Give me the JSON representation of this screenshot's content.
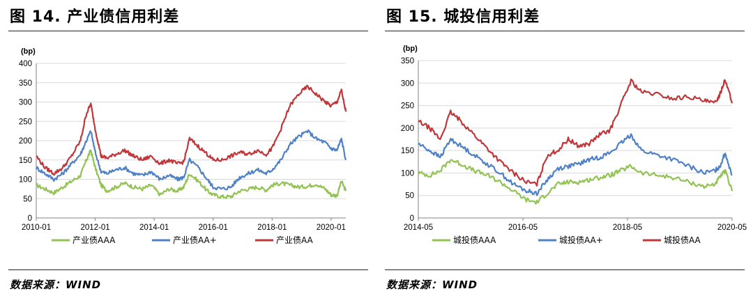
{
  "panels": [
    {
      "title": "图 14. 产业债信用利差",
      "source": "数据来源：WIND"
    },
    {
      "title": "图 15.  城投信用利差",
      "source": "数据来源：WIND"
    }
  ],
  "chart_data": [
    {
      "type": "line",
      "title": "图 14. 产业债信用利差",
      "ylabel": "(bp)",
      "ylim": [
        0,
        400
      ],
      "yticks": [
        0,
        50,
        100,
        150,
        200,
        250,
        300,
        350,
        400
      ],
      "xlim": [
        2010.0,
        2020.5
      ],
      "xticks": [
        {
          "label": "2010-01",
          "value": 2010.0
        },
        {
          "label": "2012-01",
          "value": 2012.0
        },
        {
          "label": "2014-01",
          "value": 2014.0
        },
        {
          "label": "2016-01",
          "value": 2016.0
        },
        {
          "label": "2018-01",
          "value": 2018.0
        },
        {
          "label": "2020-01",
          "value": 2020.0
        }
      ],
      "grid": "horizontal",
      "legend": "bottom",
      "series": [
        {
          "name": "产业债AAA",
          "color": "#92c353",
          "x": [
            2010.0,
            2010.3,
            2010.6,
            2010.9,
            2011.2,
            2011.5,
            2011.7,
            2011.85,
            2012.0,
            2012.2,
            2012.4,
            2012.7,
            2013.0,
            2013.3,
            2013.6,
            2013.9,
            2014.2,
            2014.5,
            2014.8,
            2015.0,
            2015.2,
            2015.5,
            2015.8,
            2016.0,
            2016.3,
            2016.6,
            2016.9,
            2017.2,
            2017.5,
            2017.8,
            2018.0,
            2018.3,
            2018.6,
            2018.9,
            2019.2,
            2019.5,
            2019.8,
            2020.0,
            2020.2,
            2020.35,
            2020.5
          ],
          "y": [
            85,
            75,
            65,
            80,
            95,
            110,
            150,
            175,
            130,
            85,
            70,
            80,
            90,
            80,
            75,
            85,
            60,
            75,
            70,
            80,
            115,
            95,
            70,
            60,
            55,
            55,
            70,
            75,
            80,
            72,
            85,
            90,
            85,
            80,
            82,
            88,
            75,
            60,
            58,
            95,
            70
          ]
        },
        {
          "name": "产业债AA+",
          "color": "#4f81c6",
          "x": [
            2010.0,
            2010.3,
            2010.6,
            2010.9,
            2011.2,
            2011.5,
            2011.7,
            2011.85,
            2012.0,
            2012.2,
            2012.4,
            2012.7,
            2013.0,
            2013.3,
            2013.6,
            2013.9,
            2014.2,
            2014.5,
            2014.8,
            2015.0,
            2015.2,
            2015.5,
            2015.8,
            2016.0,
            2016.3,
            2016.6,
            2016.9,
            2017.2,
            2017.5,
            2017.8,
            2018.0,
            2018.3,
            2018.6,
            2018.9,
            2019.2,
            2019.5,
            2019.8,
            2020.0,
            2020.2,
            2020.35,
            2020.5
          ],
          "y": [
            130,
            115,
            100,
            115,
            140,
            165,
            200,
            225,
            170,
            120,
            115,
            125,
            130,
            115,
            110,
            120,
            100,
            110,
            100,
            105,
            150,
            130,
            100,
            80,
            75,
            80,
            105,
            115,
            125,
            115,
            125,
            150,
            190,
            210,
            225,
            205,
            195,
            180,
            175,
            205,
            150
          ]
        },
        {
          "name": "产业债AA",
          "color": "#c0373a",
          "x": [
            2010.0,
            2010.3,
            2010.6,
            2010.9,
            2011.2,
            2011.5,
            2011.7,
            2011.85,
            2012.0,
            2012.2,
            2012.4,
            2012.7,
            2013.0,
            2013.3,
            2013.6,
            2013.9,
            2014.2,
            2014.5,
            2014.8,
            2015.0,
            2015.2,
            2015.5,
            2015.8,
            2016.0,
            2016.3,
            2016.6,
            2016.9,
            2017.2,
            2017.5,
            2017.8,
            2018.0,
            2018.3,
            2018.6,
            2018.9,
            2019.2,
            2019.5,
            2019.8,
            2020.0,
            2020.2,
            2020.35,
            2020.5
          ],
          "y": [
            160,
            130,
            115,
            130,
            160,
            200,
            270,
            295,
            230,
            160,
            155,
            165,
            175,
            160,
            150,
            160,
            140,
            150,
            140,
            145,
            205,
            185,
            165,
            150,
            150,
            160,
            170,
            165,
            175,
            165,
            180,
            230,
            290,
            320,
            340,
            320,
            300,
            290,
            300,
            330,
            275
          ]
        }
      ]
    },
    {
      "type": "line",
      "title": "图 15.  城投信用利差",
      "ylabel": "(bp)",
      "ylim": [
        0,
        350
      ],
      "yticks": [
        0,
        50,
        100,
        150,
        200,
        250,
        300,
        350
      ],
      "xlim": [
        2014.333,
        2020.333
      ],
      "xticks": [
        {
          "label": "2014-05",
          "value": 2014.333
        },
        {
          "label": "2016-05",
          "value": 2016.333
        },
        {
          "label": "2018-05",
          "value": 2018.333
        },
        {
          "label": "2020-05",
          "value": 2020.333
        }
      ],
      "grid": "horizontal",
      "legend": "bottom",
      "series": [
        {
          "name": "城投债AAA",
          "color": "#92c353",
          "x": [
            2014.333,
            2014.55,
            2014.75,
            2014.95,
            2015.15,
            2015.4,
            2015.65,
            2015.9,
            2016.15,
            2016.4,
            2016.6,
            2016.8,
            2017.0,
            2017.2,
            2017.4,
            2017.6,
            2017.8,
            2018.0,
            2018.2,
            2018.4,
            2018.6,
            2018.9,
            2019.2,
            2019.5,
            2019.8,
            2020.0,
            2020.1,
            2020.2,
            2020.333
          ],
          "y": [
            100,
            95,
            105,
            130,
            120,
            105,
            95,
            80,
            60,
            40,
            35,
            55,
            75,
            80,
            80,
            85,
            90,
            95,
            105,
            115,
            100,
            95,
            90,
            80,
            70,
            75,
            90,
            105,
            60
          ]
        },
        {
          "name": "城投债AA+",
          "color": "#4f81c6",
          "x": [
            2014.333,
            2014.55,
            2014.75,
            2014.95,
            2015.15,
            2015.4,
            2015.65,
            2015.9,
            2016.15,
            2016.4,
            2016.6,
            2016.8,
            2017.0,
            2017.2,
            2017.4,
            2017.6,
            2017.8,
            2018.0,
            2018.2,
            2018.4,
            2018.6,
            2018.9,
            2019.2,
            2019.5,
            2019.8,
            2020.0,
            2020.1,
            2020.2,
            2020.333
          ],
          "y": [
            165,
            150,
            135,
            175,
            160,
            140,
            120,
            100,
            75,
            60,
            55,
            85,
            110,
            115,
            120,
            130,
            135,
            145,
            165,
            185,
            150,
            140,
            130,
            115,
            100,
            105,
            115,
            145,
            95
          ]
        },
        {
          "name": "城投债AA",
          "color": "#c0373a",
          "x": [
            2014.333,
            2014.55,
            2014.75,
            2014.95,
            2015.15,
            2015.4,
            2015.65,
            2015.9,
            2016.15,
            2016.4,
            2016.6,
            2016.8,
            2017.0,
            2017.2,
            2017.4,
            2017.6,
            2017.8,
            2018.0,
            2018.2,
            2018.4,
            2018.6,
            2018.9,
            2019.2,
            2019.5,
            2019.8,
            2020.0,
            2020.1,
            2020.2,
            2020.333
          ],
          "y": [
            215,
            200,
            175,
            235,
            215,
            185,
            155,
            125,
            100,
            80,
            75,
            140,
            150,
            175,
            160,
            165,
            185,
            195,
            250,
            305,
            280,
            275,
            265,
            270,
            260,
            255,
            275,
            310,
            255
          ]
        }
      ]
    }
  ]
}
